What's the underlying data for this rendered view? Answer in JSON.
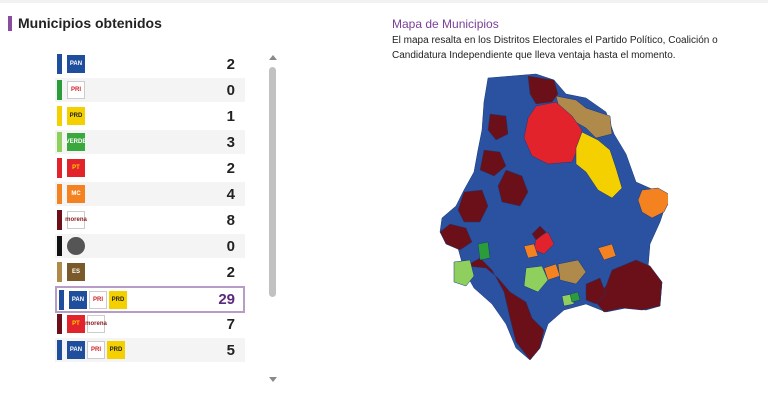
{
  "panel": {
    "title": "Municipios obtenidos"
  },
  "rows": [
    {
      "strip": "#1f4e9c",
      "count": "2",
      "logos": [
        {
          "icon": "pan-logo",
          "text": "PAN",
          "bg": "#1f4e9c",
          "fg": "#ffffff"
        }
      ]
    },
    {
      "strip": "#2a9d3a",
      "count": "0",
      "logos": [
        {
          "icon": "pri-logo",
          "text": "PRI",
          "bg": "#ffffff",
          "fg": "#d0202a"
        }
      ]
    },
    {
      "strip": "#f4d000",
      "count": "1",
      "logos": [
        {
          "icon": "prd-logo",
          "text": "PRD",
          "bg": "#f4d000",
          "fg": "#222222"
        }
      ]
    },
    {
      "strip": "#8fcf5e",
      "count": "3",
      "logos": [
        {
          "icon": "verde-logo",
          "text": "VERDE",
          "bg": "#3aa83c",
          "fg": "#ffffff"
        }
      ]
    },
    {
      "strip": "#e3232b",
      "count": "2",
      "logos": [
        {
          "icon": "pt-logo",
          "text": "PT",
          "bg": "#e3232b",
          "fg": "#ffd200"
        }
      ]
    },
    {
      "strip": "#f58220",
      "count": "4",
      "logos": [
        {
          "icon": "mc-logo",
          "text": "MC",
          "bg": "#f58220",
          "fg": "#ffffff"
        }
      ]
    },
    {
      "strip": "#6b0f18",
      "count": "8",
      "logos": [
        {
          "icon": "morena-logo",
          "text": "morena",
          "bg": "#ffffff",
          "fg": "#8b1a1a"
        }
      ]
    },
    {
      "strip": "#111111",
      "count": "0",
      "logos": [
        {
          "icon": "independiente-logo",
          "text": "",
          "bg": "#555555",
          "fg": "#ffffff"
        }
      ]
    },
    {
      "strip": "#b08a4a",
      "count": "2",
      "logos": [
        {
          "icon": "encuentro-logo",
          "text": "ES",
          "bg": "#7a5a2a",
          "fg": "#ffffff"
        }
      ]
    },
    {
      "strip": "#1f4e9c",
      "count": "29",
      "highlight": true,
      "logos": [
        {
          "icon": "pan-logo",
          "text": "PAN",
          "bg": "#1f4e9c",
          "fg": "#ffffff"
        },
        {
          "icon": "pri-logo",
          "text": "PRI",
          "bg": "#ffffff",
          "fg": "#d0202a"
        },
        {
          "icon": "prd-logo",
          "text": "PRD",
          "bg": "#f4d000",
          "fg": "#222222"
        }
      ]
    },
    {
      "strip": "#6b0f18",
      "count": "7",
      "logos": [
        {
          "icon": "pt-logo",
          "text": "PT",
          "bg": "#e3232b",
          "fg": "#ffd200"
        },
        {
          "icon": "morena-logo",
          "text": "morena",
          "bg": "#ffffff",
          "fg": "#8b1a1a"
        }
      ]
    },
    {
      "strip": "#1f4e9c",
      "count": "5",
      "logos": [
        {
          "icon": "pan-logo",
          "text": "PAN",
          "bg": "#1f4e9c",
          "fg": "#ffffff"
        },
        {
          "icon": "pri-logo",
          "text": "PRI",
          "bg": "#ffffff",
          "fg": "#d0202a"
        },
        {
          "icon": "prd-logo",
          "text": "PRD",
          "bg": "#f4d000",
          "fg": "#222222"
        }
      ]
    }
  ],
  "map": {
    "title": "Mapa de Municipios",
    "description": "El mapa resalta en los Distritos Electorales el Partido Político, Coalición o Candidatura Independiente que lleva ventaja hasta el momento.",
    "colors": {
      "pan_coalition": "#2a52a0",
      "morena": "#6b0f18",
      "pt": "#e3232b",
      "prd": "#f4d000",
      "mc": "#f58220",
      "encuentro": "#b08a4a",
      "verde": "#8fcf5e",
      "pri": "#2a9d3a"
    }
  }
}
